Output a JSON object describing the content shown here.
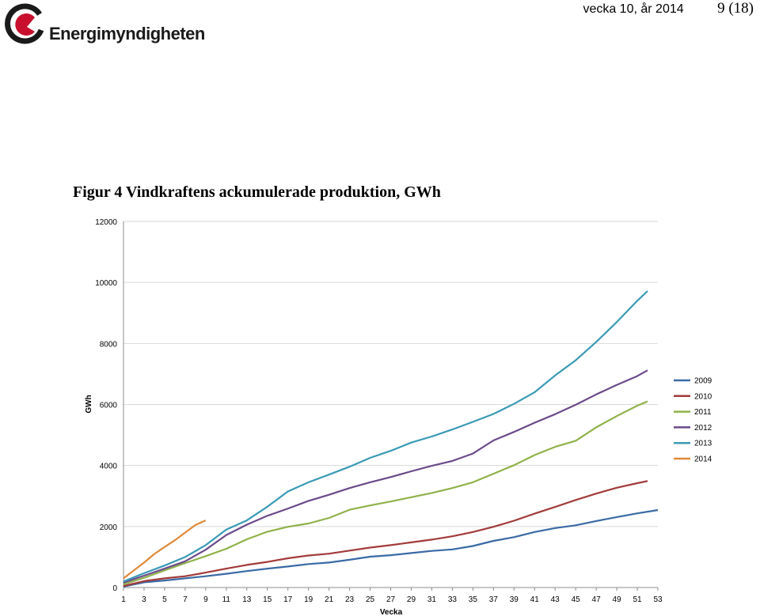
{
  "header": {
    "logo_text": "Energimyndigheten",
    "week_text": "vecka 10, år 2014",
    "page_text": "9 (18)"
  },
  "figure": {
    "title": "Figur 4 Vindkraftens ackumulerade produktion, GWh"
  },
  "colors": {
    "logo_red": "#c8102e",
    "logo_dark": "#1a1a1a"
  },
  "chart_data": {
    "type": "line",
    "xlabel": "Vecka",
    "ylabel": "GWh",
    "xlim": [
      1,
      53
    ],
    "ylim": [
      0,
      12000
    ],
    "y_ticks": [
      0,
      2000,
      4000,
      6000,
      8000,
      10000,
      12000
    ],
    "x_ticks": [
      "1",
      "3",
      "5",
      "7",
      "9",
      "11",
      "13",
      "15",
      "17",
      "19",
      "21",
      "23",
      "25",
      "27",
      "29",
      "31",
      "33",
      "35",
      "37",
      "39",
      "41",
      "43",
      "45",
      "47",
      "49",
      "51",
      "53"
    ],
    "grid": "horizontal",
    "legend_position": "right",
    "series": [
      {
        "name": "2009",
        "color": "#3a6aa5",
        "x": [
          1,
          3,
          5,
          7,
          9,
          11,
          13,
          15,
          17,
          19,
          21,
          23,
          25,
          27,
          29,
          31,
          33,
          35,
          37,
          39,
          41,
          43,
          45,
          47,
          49,
          51,
          53
        ],
        "y": [
          30,
          170,
          230,
          300,
          370,
          450,
          540,
          620,
          690,
          770,
          820,
          910,
          1010,
          1060,
          1130,
          1200,
          1250,
          1360,
          1530,
          1650,
          1820,
          1950,
          2040,
          2180,
          2310,
          2430,
          2540
        ]
      },
      {
        "name": "2010",
        "color": "#a33a3a",
        "x": [
          1,
          3,
          5,
          7,
          9,
          11,
          13,
          15,
          17,
          19,
          21,
          23,
          25,
          27,
          29,
          31,
          33,
          35,
          37,
          39,
          41,
          43,
          45,
          47,
          49,
          51,
          52
        ],
        "y": [
          50,
          210,
          300,
          370,
          490,
          620,
          740,
          840,
          960,
          1050,
          1110,
          1210,
          1310,
          1390,
          1480,
          1570,
          1680,
          1820,
          1990,
          2190,
          2420,
          2640,
          2870,
          3080,
          3270,
          3420,
          3490
        ]
      },
      {
        "name": "2011",
        "color": "#8fb24a",
        "x": [
          1,
          3,
          5,
          7,
          9,
          11,
          13,
          15,
          17,
          19,
          21,
          23,
          25,
          27,
          29,
          31,
          33,
          35,
          37,
          39,
          41,
          43,
          45,
          47,
          49,
          51,
          52
        ],
        "y": [
          100,
          320,
          560,
          800,
          1030,
          1270,
          1580,
          1830,
          1990,
          2100,
          2280,
          2550,
          2690,
          2820,
          2960,
          3100,
          3260,
          3450,
          3730,
          4010,
          4340,
          4610,
          4810,
          5250,
          5620,
          5960,
          6100
        ]
      },
      {
        "name": "2012",
        "color": "#6b4a8a",
        "x": [
          1,
          3,
          5,
          7,
          9,
          11,
          13,
          15,
          17,
          19,
          21,
          23,
          25,
          27,
          29,
          31,
          33,
          35,
          37,
          39,
          41,
          43,
          45,
          47,
          49,
          51,
          52
        ],
        "y": [
          160,
          390,
          620,
          860,
          1240,
          1720,
          2060,
          2350,
          2590,
          2840,
          3040,
          3260,
          3450,
          3620,
          3810,
          3990,
          4150,
          4390,
          4820,
          5100,
          5400,
          5680,
          5990,
          6330,
          6640,
          6930,
          7120
        ]
      },
      {
        "name": "2013",
        "color": "#3a9ab5",
        "x": [
          1,
          3,
          5,
          7,
          9,
          11,
          13,
          15,
          17,
          19,
          21,
          23,
          25,
          27,
          29,
          31,
          33,
          35,
          37,
          39,
          41,
          43,
          45,
          47,
          49,
          51,
          52
        ],
        "y": [
          200,
          470,
          720,
          1000,
          1390,
          1900,
          2200,
          2650,
          3150,
          3450,
          3700,
          3960,
          4250,
          4480,
          4750,
          4950,
          5180,
          5430,
          5690,
          6020,
          6400,
          6950,
          7450,
          8050,
          8700,
          9400,
          9720
        ]
      },
      {
        "name": "2014",
        "color": "#e0893a",
        "x": [
          1,
          2,
          3,
          4,
          5,
          6,
          7,
          8,
          9
        ],
        "y": [
          300,
          560,
          820,
          1100,
          1330,
          1550,
          1800,
          2050,
          2200
        ]
      }
    ]
  }
}
